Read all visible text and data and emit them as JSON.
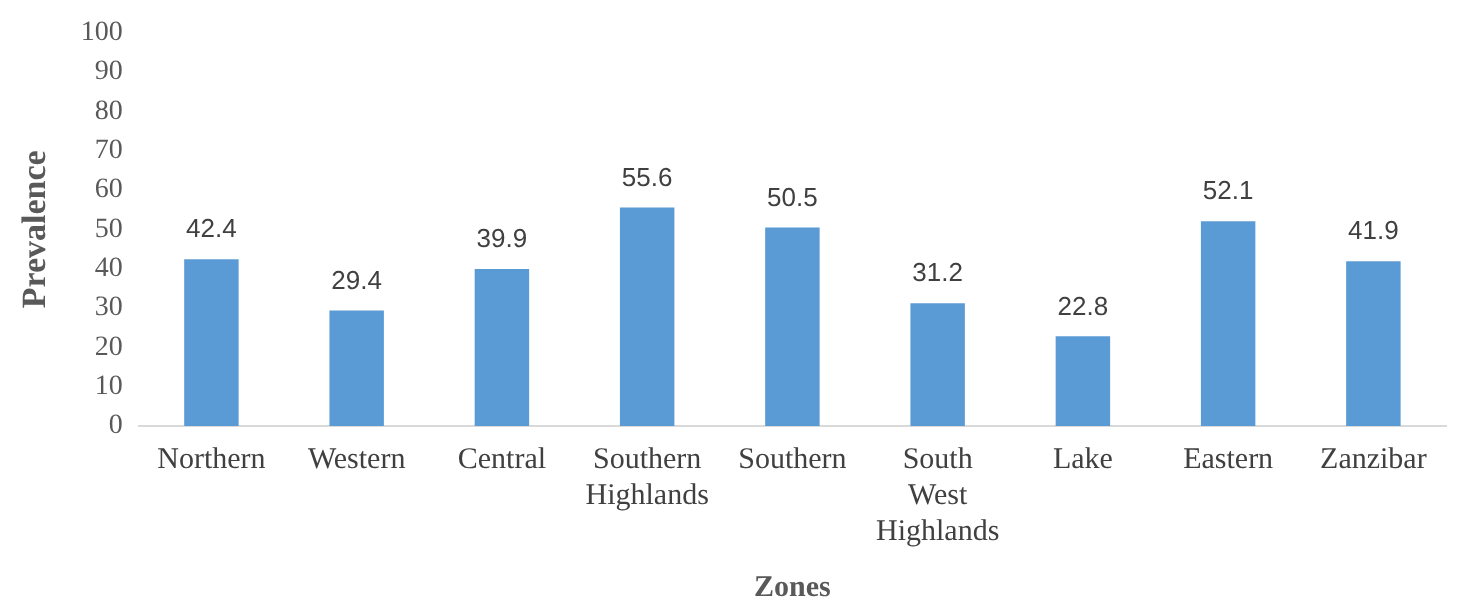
{
  "chart_data": {
    "type": "bar",
    "xlabel": "Zones",
    "ylabel": "Prevalence",
    "categories": [
      "Northern",
      "Western",
      "Central",
      "Southern Highlands",
      "Southern",
      "South West Highlands",
      "Lake",
      "Eastern",
      "Zanzibar"
    ],
    "values": [
      42.4,
      29.4,
      39.9,
      55.6,
      50.5,
      31.2,
      22.8,
      52.1,
      41.9
    ],
    "color": "#5b9bd5",
    "ylim": [
      0,
      100
    ],
    "yticks": [
      0,
      10,
      20,
      30,
      40,
      50,
      60,
      70,
      80,
      90,
      100
    ],
    "grid": false,
    "legend": false,
    "data_labels": true
  }
}
